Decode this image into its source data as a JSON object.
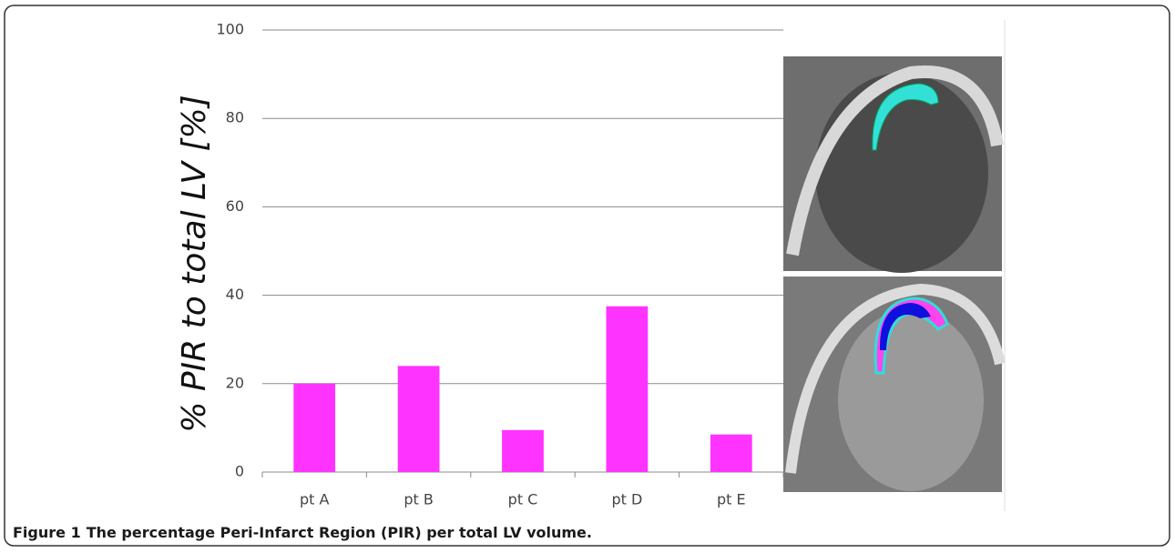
{
  "chart_data": {
    "type": "bar",
    "y_label": "% PIR to total LV [%]",
    "categories": [
      "pt A",
      "pt B",
      "pt C",
      "pt D",
      "pt E"
    ],
    "values": [
      20,
      24,
      9.5,
      37.5,
      8.5
    ],
    "color": "#ff33ff",
    "ylim": [
      0,
      100
    ],
    "yticks": [
      0,
      20,
      40,
      60,
      80,
      100
    ],
    "grid": true
  },
  "caption": {
    "label": "Figure 1",
    "text": "The percentage Peri-Infarct Region (PIR) per total LV volume."
  }
}
